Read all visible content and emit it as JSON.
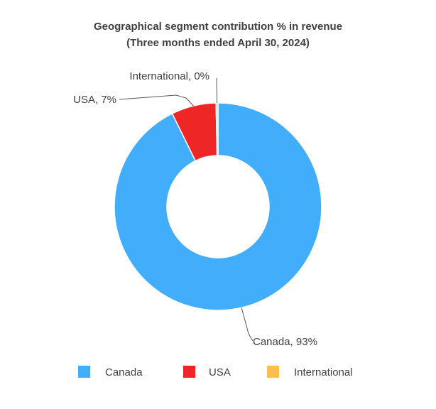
{
  "chart_data": {
    "type": "pie",
    "title": "Geographical segment contribution % in revenue",
    "subtitle": "(Three months ended April 30, 2024)",
    "categories": [
      "Canada",
      "USA",
      "International"
    ],
    "values": [
      93,
      7,
      0.3
    ],
    "colors": [
      "#42ADFA",
      "#EE2626",
      "#FDBE4B"
    ],
    "labels": [
      "Canada, 93%",
      "USA, 7%",
      "International, 0%"
    ],
    "legend": [
      "Canada",
      "USA",
      "International"
    ],
    "legend_position": "bottom",
    "donut": true
  }
}
